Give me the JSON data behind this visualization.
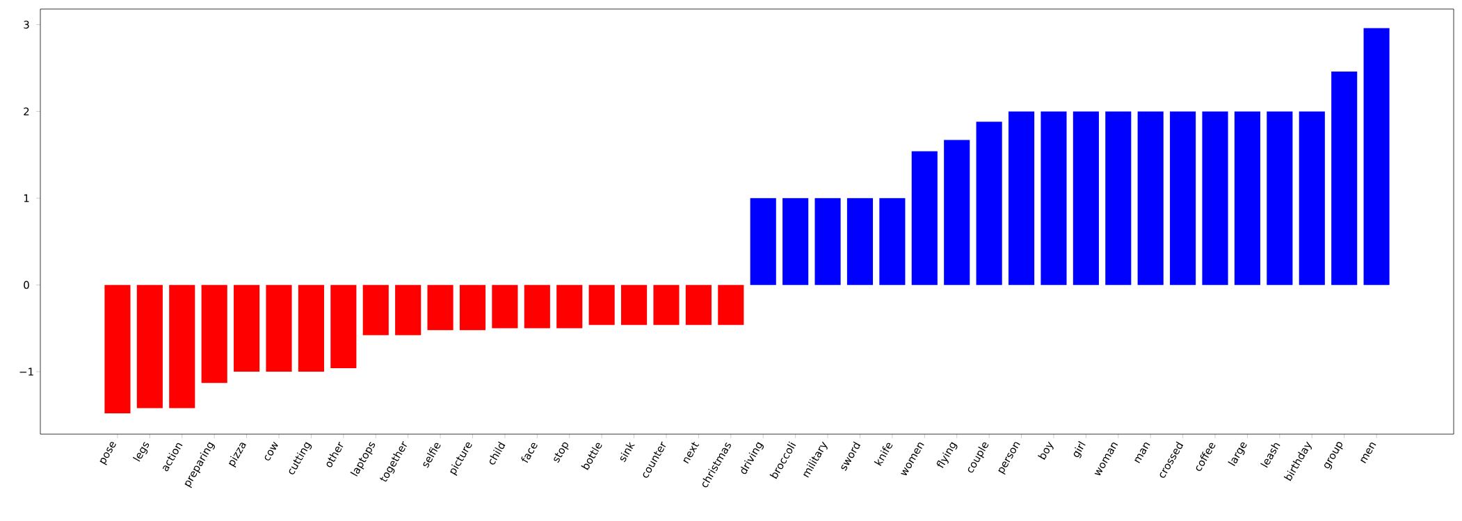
{
  "chart_data": {
    "type": "bar",
    "categories": [
      "pose",
      "legs",
      "action",
      "preparing",
      "pizza",
      "cow",
      "cutting",
      "other",
      "laptops",
      "together",
      "selfie",
      "picture",
      "child",
      "face",
      "stop",
      "bottle",
      "sink",
      "counter",
      "next",
      "christmas",
      "driving",
      "broccoli",
      "military",
      "sword",
      "knife",
      "women",
      "flying",
      "couple",
      "person",
      "boy",
      "girl",
      "woman",
      "man",
      "crossed",
      "coffee",
      "large",
      "leash",
      "birthday",
      "group",
      "men"
    ],
    "values": [
      -1.48,
      -1.42,
      -1.42,
      -1.13,
      -1,
      -1,
      -1,
      -0.96,
      -0.58,
      -0.58,
      -0.52,
      -0.52,
      -0.5,
      -0.5,
      -0.5,
      -0.46,
      -0.46,
      -0.46,
      -0.46,
      -0.46,
      1,
      1,
      1,
      1,
      1,
      1.54,
      1.67,
      1.88,
      2,
      2,
      2,
      2,
      2,
      2,
      2,
      2,
      2,
      2,
      2.46,
      2.96
    ],
    "colors": [
      "#ff0000",
      "#ff0000",
      "#ff0000",
      "#ff0000",
      "#ff0000",
      "#ff0000",
      "#ff0000",
      "#ff0000",
      "#ff0000",
      "#ff0000",
      "#ff0000",
      "#ff0000",
      "#ff0000",
      "#ff0000",
      "#ff0000",
      "#ff0000",
      "#ff0000",
      "#ff0000",
      "#ff0000",
      "#ff0000",
      "#0000ff",
      "#0000ff",
      "#0000ff",
      "#0000ff",
      "#0000ff",
      "#0000ff",
      "#0000ff",
      "#0000ff",
      "#0000ff",
      "#0000ff",
      "#0000ff",
      "#0000ff",
      "#0000ff",
      "#0000ff",
      "#0000ff",
      "#0000ff",
      "#0000ff",
      "#0000ff",
      "#0000ff",
      "#0000ff"
    ],
    "ylim": [
      -1.72,
      3.18
    ],
    "yticks": [
      {
        "value": -1,
        "label": "−1"
      },
      {
        "value": 0,
        "label": "0"
      },
      {
        "value": 1,
        "label": "1"
      },
      {
        "value": 2,
        "label": "2"
      },
      {
        "value": 3,
        "label": "3"
      }
    ],
    "grid": false
  }
}
